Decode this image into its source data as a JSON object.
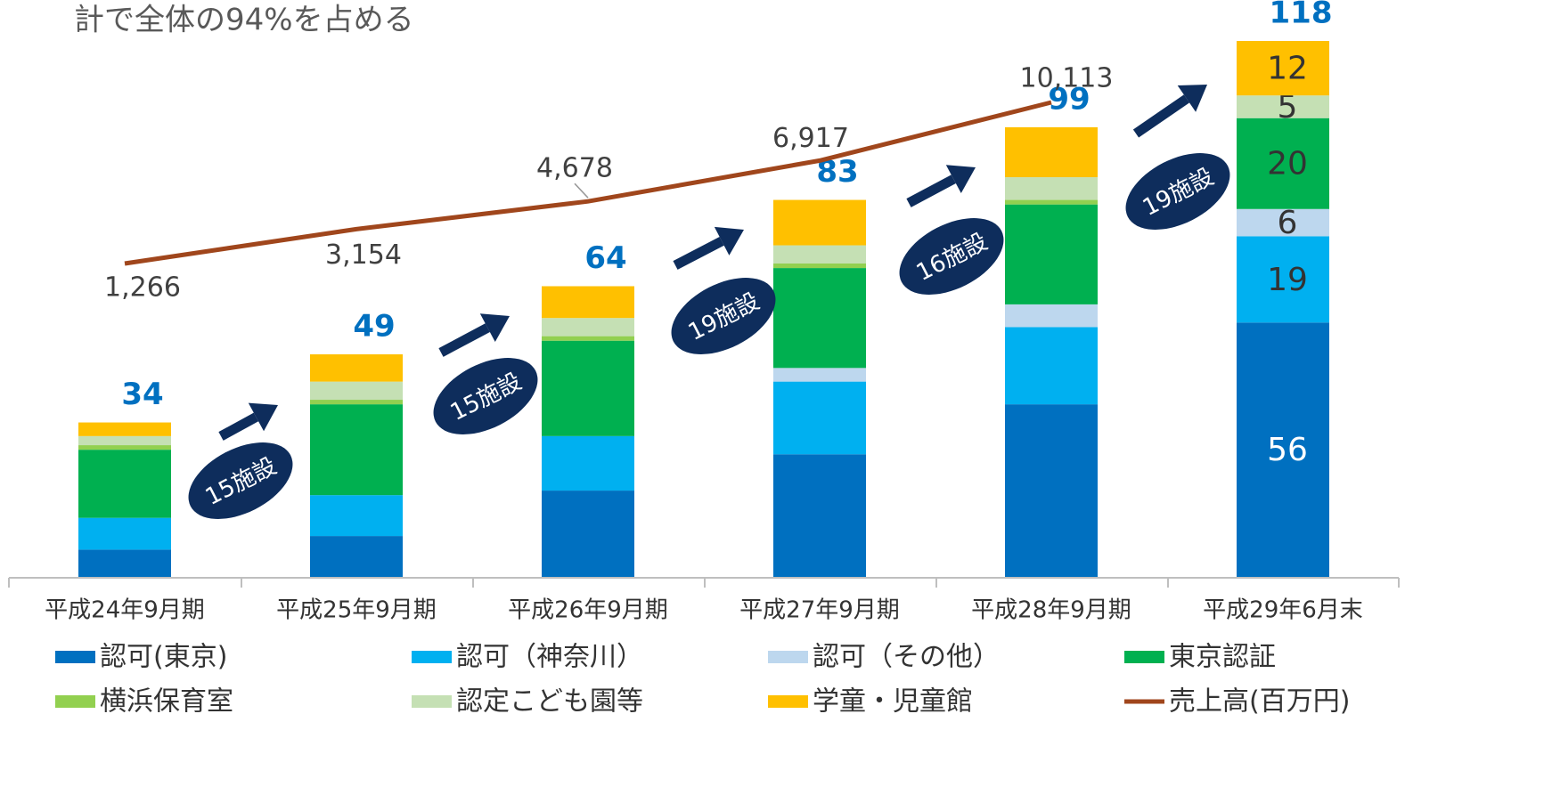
{
  "chart_data": {
    "type": "bar",
    "stacked": true,
    "title": "計で全体の94%を占める",
    "categories": [
      "平成24年9月期",
      "平成25年9月期",
      "平成26年9月期",
      "平成27年9月期",
      "平成28年9月期",
      "平成29年6月末"
    ],
    "series": [
      {
        "name": "認可(東京)",
        "color": "#0070c0",
        "values": [
          6,
          9,
          19,
          27,
          38,
          56
        ]
      },
      {
        "name": "認可（神奈川）",
        "color": "#00b0f0",
        "values": [
          7,
          9,
          12,
          16,
          17,
          19
        ]
      },
      {
        "name": "認可（その他）",
        "color": "#bdd7ee",
        "values": [
          0,
          0,
          0,
          3,
          5,
          6
        ]
      },
      {
        "name": "東京認証",
        "color": "#00b050",
        "values": [
          15,
          20,
          21,
          22,
          22,
          20
        ]
      },
      {
        "name": "横浜保育室",
        "color": "#92d050",
        "values": [
          1,
          1,
          1,
          1,
          1,
          0
        ]
      },
      {
        "name": "認定こども園等",
        "color": "#c5e0b4",
        "values": [
          2,
          4,
          4,
          4,
          5,
          5
        ]
      },
      {
        "name": "学童・児童館",
        "color": "#ffc000",
        "values": [
          3,
          6,
          7,
          10,
          11,
          12
        ]
      },
      {
        "name": "売上高(百万円)",
        "type": "line",
        "color": "#a0461c",
        "values": [
          1266,
          3154,
          4678,
          6917,
          10113,
          null
        ],
        "value_labels": [
          "1,266",
          "3,154",
          "4,678",
          "6,917",
          "10,113",
          null
        ]
      }
    ],
    "totals": [
      34,
      49,
      64,
      83,
      99,
      118
    ],
    "annotations": [
      "15施設",
      "15施設",
      "19施設",
      "16施設",
      "19施設"
    ]
  }
}
